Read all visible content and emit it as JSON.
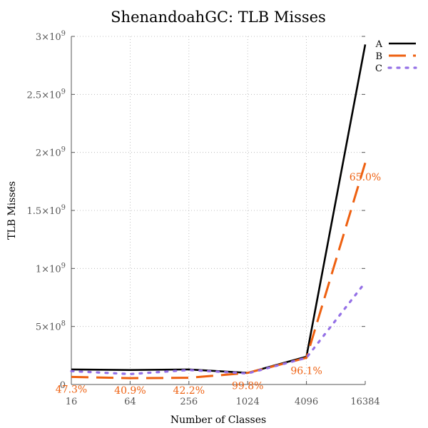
{
  "chart_data": {
    "type": "line",
    "title": "ShenandoahGC: TLB Misses",
    "xlabel": "Number of Classes",
    "ylabel": "TLB Misses",
    "x_scale": "log2",
    "x": [
      16,
      64,
      256,
      1024,
      4096,
      16384
    ],
    "x_tick_labels": [
      "16",
      "64",
      "256",
      "1024",
      "4096",
      "16384"
    ],
    "ylim": [
      0,
      3000000000
    ],
    "y_ticks": [
      {
        "value": 0,
        "mantissa": "0",
        "exp": ""
      },
      {
        "value": 500000000,
        "mantissa": "5×10",
        "exp": "8"
      },
      {
        "value": 1000000000,
        "mantissa": "1×10",
        "exp": "9"
      },
      {
        "value": 1500000000,
        "mantissa": "1.5×10",
        "exp": "9"
      },
      {
        "value": 2000000000,
        "mantissa": "2×10",
        "exp": "9"
      },
      {
        "value": 2500000000,
        "mantissa": "2.5×10",
        "exp": "9"
      },
      {
        "value": 3000000000,
        "mantissa": "3×10",
        "exp": "9"
      }
    ],
    "grid": true,
    "legend_position": "top-right",
    "series": [
      {
        "name": "A",
        "color": "#000000",
        "dash": "solid",
        "values": [
          130000000,
          125000000,
          130000000,
          100000000,
          240000000,
          2930000000
        ]
      },
      {
        "name": "B",
        "color": "#ee6010",
        "dash": "dashed",
        "values": [
          65000000,
          55000000,
          58000000,
          100000000,
          230000000,
          1910000000
        ]
      },
      {
        "name": "C",
        "color": "#9470e6",
        "dash": "dotted",
        "values": [
          115000000,
          90000000,
          125000000,
          95000000,
          230000000,
          880000000
        ]
      }
    ],
    "annotations": [
      {
        "text": "47.3%",
        "x": 16,
        "y": -40000000
      },
      {
        "text": "40.9%",
        "x": 64,
        "y": -50000000
      },
      {
        "text": "42.2%",
        "x": 256,
        "y": -50000000
      },
      {
        "text": "99.8%",
        "x": 1024,
        "y": -10000000
      },
      {
        "text": "96.1%",
        "x": 4096,
        "y": 120000000
      },
      {
        "text": "65.0%",
        "x": 16384,
        "y": 1790000000
      }
    ],
    "annotation_color": "#ee6010"
  }
}
